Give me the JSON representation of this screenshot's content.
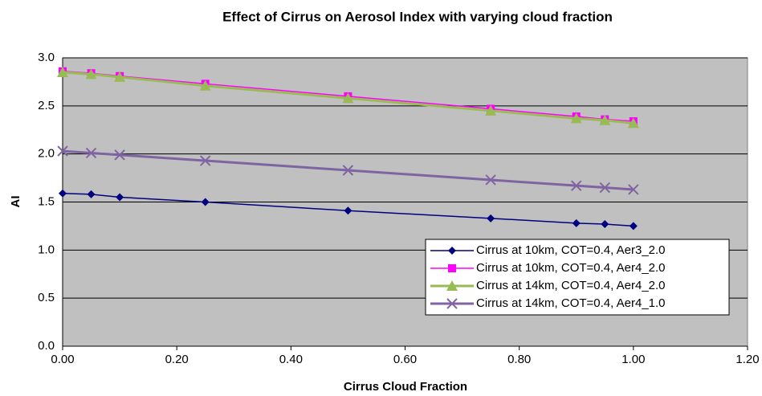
{
  "chart_data": {
    "type": "line",
    "title": "Effect of Cirrus on Aerosol Index with varying cloud fraction",
    "xlabel": "Cirrus Cloud Fraction",
    "ylabel": "AI",
    "x": [
      0,
      0.05,
      0.1,
      0.25,
      0.5,
      0.75,
      0.9,
      0.95,
      1.0
    ],
    "series": [
      {
        "name": "Cirrus at 10km, COT=0.4, Aer3_2.0",
        "color": "#000080",
        "marker": "diamond",
        "values": [
          1.59,
          1.58,
          1.55,
          1.5,
          1.41,
          1.33,
          1.28,
          1.27,
          1.25
        ]
      },
      {
        "name": "Cirrus at 10km, COT=0.4, Aer4_2.0",
        "color": "#ff00ff",
        "marker": "square",
        "values": [
          2.86,
          2.84,
          2.81,
          2.73,
          2.6,
          2.47,
          2.39,
          2.36,
          2.34
        ]
      },
      {
        "name": "Cirrus at 14km, COT=0.4, Aer4_2.0",
        "color": "#99bb55",
        "marker": "triangle",
        "values": [
          2.85,
          2.83,
          2.8,
          2.71,
          2.58,
          2.45,
          2.37,
          2.35,
          2.32
        ]
      },
      {
        "name": "Cirrus at 14km, COT=0.4, Aer4_1.0",
        "color": "#8064a2",
        "marker": "x",
        "values": [
          2.03,
          2.01,
          1.99,
          1.93,
          1.83,
          1.73,
          1.67,
          1.65,
          1.63
        ]
      }
    ],
    "xlim": [
      0,
      1.2
    ],
    "xticks": [
      {
        "value": 0,
        "label": "0.00"
      },
      {
        "value": 0.2,
        "label": "0.20"
      },
      {
        "value": 0.4,
        "label": "0.40"
      },
      {
        "value": 0.6,
        "label": "0.60"
      },
      {
        "value": 0.8,
        "label": "0.80"
      },
      {
        "value": 1.0,
        "label": "1.00"
      },
      {
        "value": 1.2,
        "label": "1.20"
      }
    ],
    "ylim": [
      0,
      3
    ],
    "yticks": [
      {
        "value": 0,
        "label": "0.0"
      },
      0.5,
      {
        "value": 1,
        "label": "1.0"
      },
      1.5,
      {
        "value": 2,
        "label": "2.0"
      },
      2.5,
      {
        "value": 3,
        "label": "3.0"
      }
    ],
    "grid": true,
    "legend": "lower right"
  }
}
